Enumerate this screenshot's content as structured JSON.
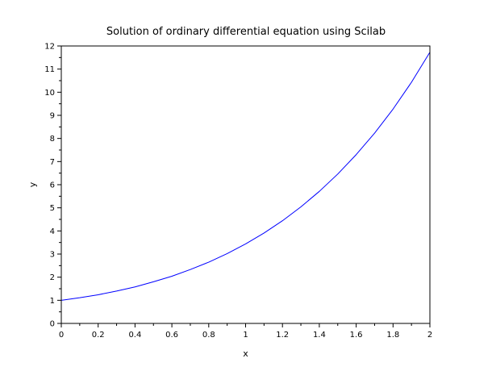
{
  "chart_data": {
    "type": "line",
    "title": "Solution of ordinary differential equation using Scilab",
    "xlabel": "x",
    "ylabel": "y",
    "xlim": [
      0,
      2
    ],
    "ylim": [
      0,
      12
    ],
    "xticks": [
      "0",
      "0.2",
      "0.4",
      "0.6",
      "0.8",
      "1",
      "1.2",
      "1.4",
      "1.6",
      "1.8",
      "2"
    ],
    "yticks": [
      "0",
      "1",
      "2",
      "3",
      "4",
      "5",
      "6",
      "7",
      "8",
      "9",
      "10",
      "11",
      "12"
    ],
    "grid": false,
    "legend": "none",
    "series": [
      {
        "color": "#0000ff",
        "x": [
          0,
          0.1,
          0.2,
          0.3,
          0.4,
          0.5,
          0.6,
          0.7,
          0.8,
          0.9,
          1.0,
          1.1,
          1.2,
          1.3,
          1.4,
          1.5,
          1.6,
          1.7,
          1.8,
          1.9,
          2.0
        ],
        "y": [
          1.0,
          1.11,
          1.24,
          1.4,
          1.58,
          1.8,
          2.04,
          2.33,
          2.65,
          3.02,
          3.44,
          3.91,
          4.44,
          5.04,
          5.71,
          6.46,
          7.3,
          8.23,
          9.27,
          10.43,
          11.73
        ]
      }
    ]
  }
}
